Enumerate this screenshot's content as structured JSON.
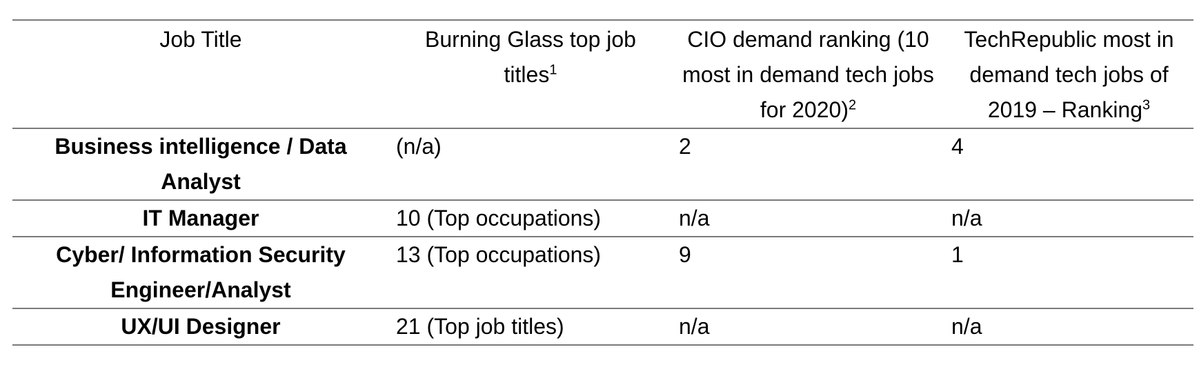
{
  "table": {
    "headers": [
      {
        "text": "Job Title",
        "sup": ""
      },
      {
        "text": "Burning Glass top job titles",
        "sup": "1"
      },
      {
        "text": "CIO demand ranking (10 most in demand tech jobs for 2020)",
        "sup": "2"
      },
      {
        "text": "TechRepublic most in demand tech jobs of 2019 – Ranking",
        "sup": "3"
      }
    ],
    "rows": [
      {
        "job": "Business intelligence / Data Analyst",
        "burning_glass": "(n/a)",
        "cio": "2",
        "techrepublic": "4"
      },
      {
        "job": "IT Manager",
        "burning_glass": "10 (Top occupations)",
        "cio": "n/a",
        "techrepublic": "n/a"
      },
      {
        "job": "Cyber/ Information Security Engineer/Analyst",
        "burning_glass": "13 (Top occupations)",
        "cio": "9",
        "techrepublic": "1"
      },
      {
        "job": "UX/UI Designer",
        "burning_glass": "21 (Top job titles)",
        "cio": "n/a",
        "techrepublic": "n/a"
      }
    ]
  }
}
